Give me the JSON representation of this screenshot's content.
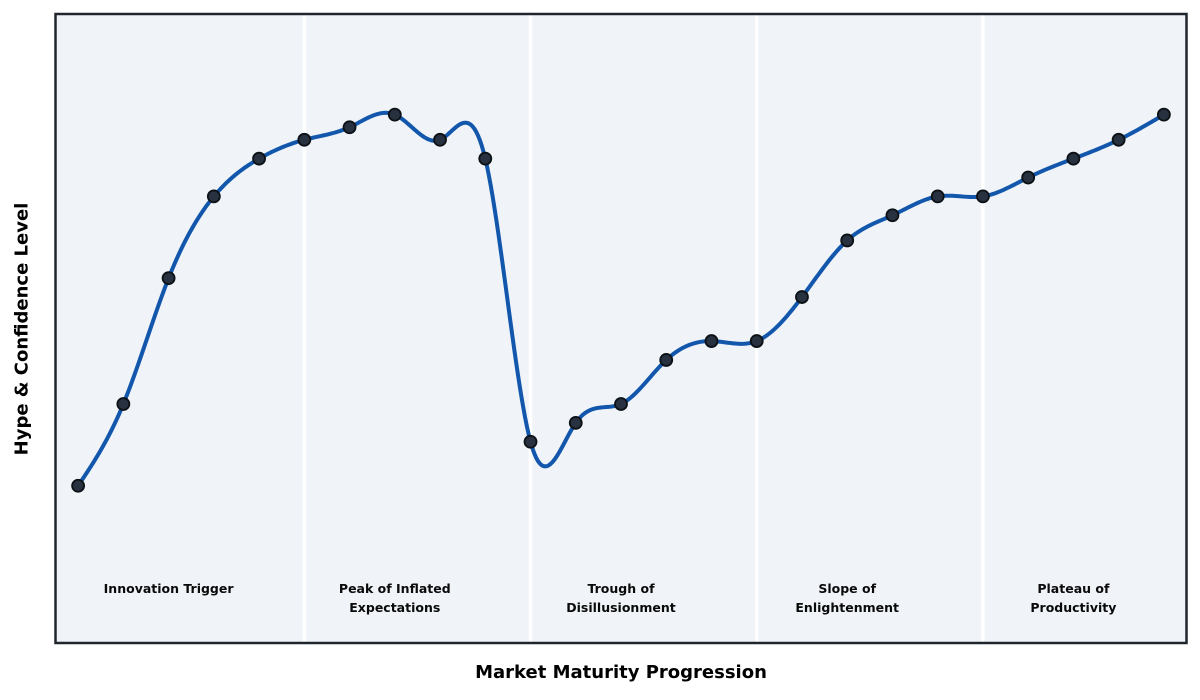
{
  "chart_data": {
    "type": "line",
    "title": "",
    "xlabel": "Market Maturity Progression",
    "ylabel": "Hype & Confidence Level",
    "x": [
      0,
      1,
      2,
      3,
      4,
      5,
      6,
      7,
      8,
      9,
      10,
      11,
      12,
      13,
      14,
      15,
      16,
      17,
      18,
      19,
      20,
      21,
      22,
      23,
      24
    ],
    "values": [
      25,
      38,
      58,
      71,
      77,
      80,
      82,
      84,
      80,
      77,
      32,
      35,
      38,
      45,
      48,
      48,
      55,
      64,
      68,
      71,
      71,
      74,
      77,
      80,
      84
    ],
    "xlim": [
      -0.5,
      24.5
    ],
    "ylim": [
      0,
      100
    ],
    "grid": false,
    "legend": "none",
    "ticks": "none",
    "smoothing": "cubic-spline",
    "line_color": "#1257ab",
    "marker_color": "#27313f",
    "marker_edge_color": "#0c1116",
    "plot_background": "#f0f4f8",
    "figure_background": "#ffffff",
    "divider_color": "#ffffff",
    "border_color": "#20262d",
    "phase_divider_x": [
      5,
      10,
      15,
      20
    ],
    "phases": [
      {
        "label": "Innovation Trigger",
        "center_x": 2
      },
      {
        "label": "Peak of Inflated\nExpectations",
        "center_x": 7
      },
      {
        "label": "Trough of\nDisillusionment",
        "center_x": 12
      },
      {
        "label": "Slope of\nEnlightenment",
        "center_x": 17
      },
      {
        "label": "Plateau of\nProductivity",
        "center_x": 22
      }
    ]
  }
}
